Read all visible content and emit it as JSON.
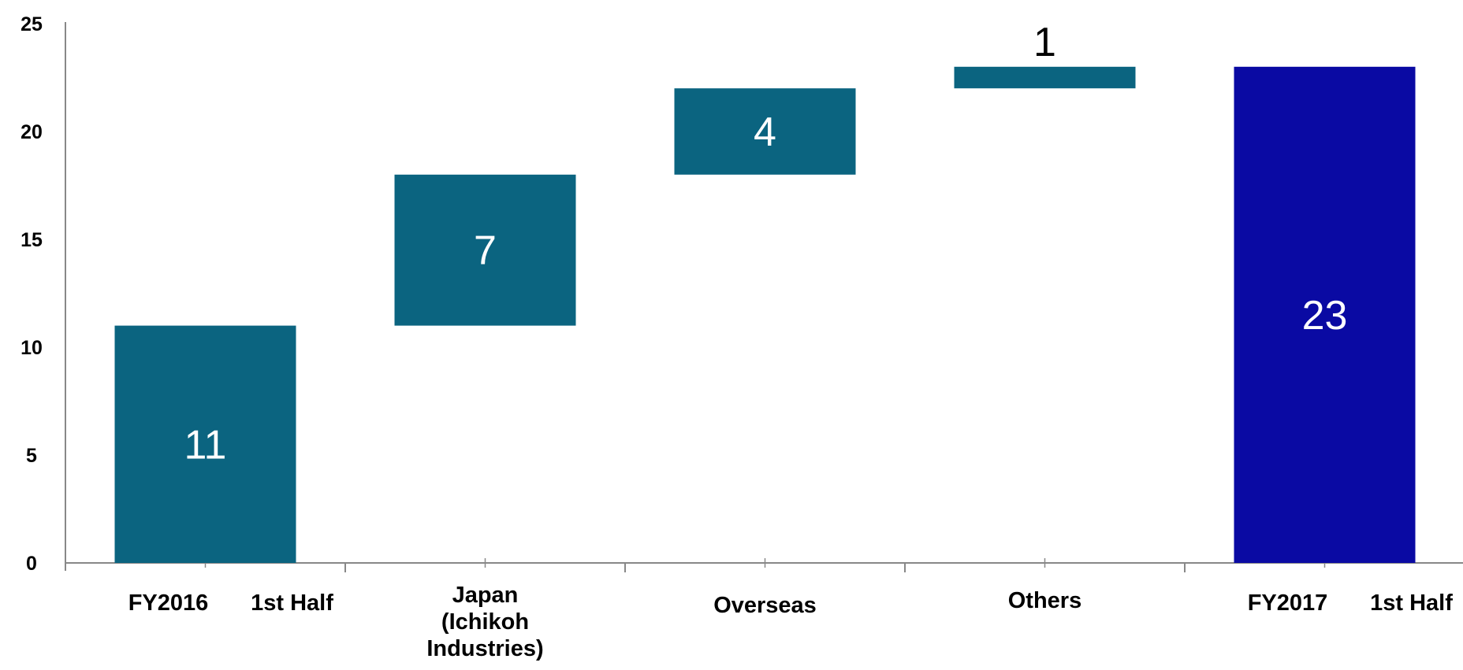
{
  "chart_data": {
    "type": "bar",
    "subtype": "waterfall",
    "title": "",
    "xlabel": "",
    "ylabel": "",
    "ylim": [
      0,
      25
    ],
    "yticks": [
      "0",
      "5",
      "10",
      "15",
      "20",
      "25"
    ],
    "grid": false,
    "legend": "none",
    "categories": [
      [
        "FY2016",
        "1st Half"
      ],
      [
        "Japan",
        "(Ichikoh",
        "Industries)"
      ],
      [
        "Overseas"
      ],
      [
        "Others"
      ],
      [
        "FY2017",
        "1st Half"
      ]
    ],
    "bars": [
      {
        "base": 0,
        "top": 11,
        "label": "11",
        "kind": "total"
      },
      {
        "base": 11,
        "top": 18,
        "label": "7",
        "kind": "increase"
      },
      {
        "base": 18,
        "top": 22,
        "label": "4",
        "kind": "increase"
      },
      {
        "base": 22,
        "top": 23,
        "label": "1",
        "kind": "increase"
      },
      {
        "base": 0,
        "top": 23,
        "label": "23",
        "kind": "total"
      }
    ],
    "colors": {
      "increase": "#0b6480",
      "start_total": "#0b6480",
      "end_total": "#0a0aa3",
      "axis": "#888888",
      "label_inside": "#ffffff",
      "label_outside": "#000000"
    }
  }
}
